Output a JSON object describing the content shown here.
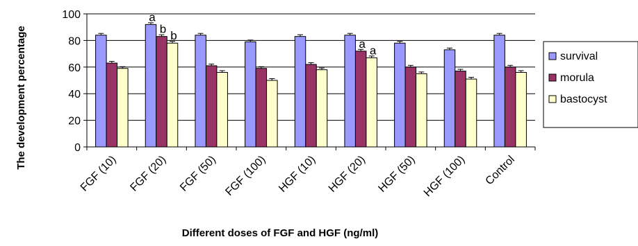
{
  "chart_data": {
    "type": "bar",
    "title": "",
    "xlabel": "Different doses of FGF and HGF (ng/ml)",
    "ylabel": "The development percentage",
    "ylim": [
      0,
      100
    ],
    "yticks": [
      0,
      20,
      40,
      60,
      80,
      100
    ],
    "grid": "horizontal",
    "legend_position": "right",
    "error_bars": true,
    "categories": [
      "FGF (10)",
      "FGF (20)",
      "FGF (50)",
      "FGF (100)",
      "HGF (10)",
      "HGF (20)",
      "HGF (50)",
      "HGF (100)",
      "Control"
    ],
    "series": [
      {
        "name": "survival",
        "color": "#9999ff",
        "values": [
          84,
          92,
          84,
          79,
          83,
          84,
          78,
          73,
          84
        ]
      },
      {
        "name": "morula",
        "color": "#993366",
        "values": [
          63,
          83,
          61,
          59,
          62,
          72,
          60,
          57,
          60
        ]
      },
      {
        "name": "bastocyst",
        "color": "#ffffcc",
        "values": [
          59,
          78,
          56,
          50,
          58,
          67,
          55,
          51,
          56
        ]
      }
    ],
    "annotations": [
      {
        "category": "FGF (20)",
        "series": "survival",
        "text": "a"
      },
      {
        "category": "FGF (20)",
        "series": "morula",
        "text": "b"
      },
      {
        "category": "FGF (20)",
        "series": "bastocyst",
        "text": "b"
      },
      {
        "category": "HGF (20)",
        "series": "morula",
        "text": "a"
      },
      {
        "category": "HGF (20)",
        "series": "bastocyst",
        "text": "a"
      }
    ]
  }
}
